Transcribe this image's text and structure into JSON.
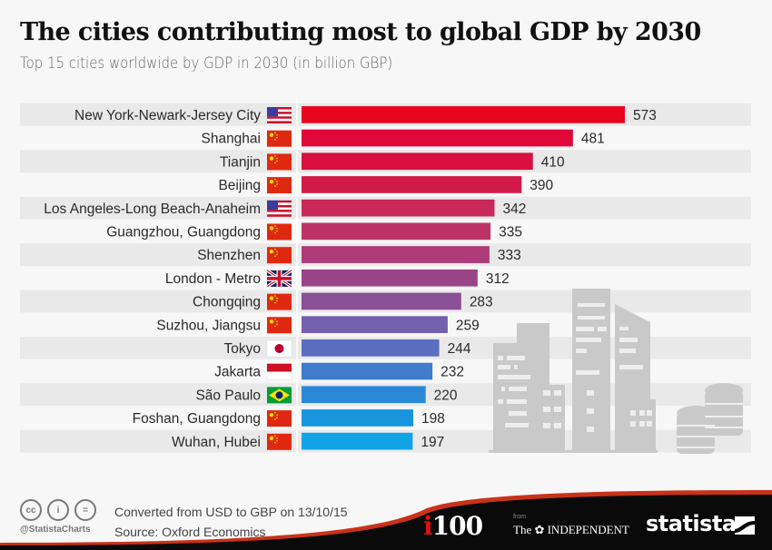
{
  "chart_data": {
    "type": "bar",
    "orientation": "horizontal",
    "title": "The cities contributing most to global GDP by 2030",
    "subtitle": "Top 15 cities worldwide by GDP in 2030 (in billion GBP)",
    "xlabel": "",
    "ylabel": "",
    "xlim": [
      0,
      573
    ],
    "grid": false,
    "legend": "none",
    "categories": [
      "New York-Newark-Jersey City",
      "Shanghai",
      "Tianjin",
      "Beijing",
      "Los Angeles-Long Beach-Anaheim",
      "Guangzhou, Guangdong",
      "Shenzhen",
      "London - Metro",
      "Chongqing",
      "Suzhou, Jiangsu",
      "Tokyo",
      "Jakarta",
      "São Paulo",
      "Foshan, Guangdong",
      "Wuhan, Hubei"
    ],
    "values": [
      573,
      481,
      410,
      390,
      342,
      335,
      333,
      312,
      283,
      259,
      244,
      232,
      220,
      198,
      197
    ],
    "flags": [
      "us-flag-icon",
      "cn-flag-icon",
      "cn-flag-icon",
      "cn-flag-icon",
      "us-flag-icon",
      "cn-flag-icon",
      "cn-flag-icon",
      "uk-flag-icon",
      "cn-flag-icon",
      "cn-flag-icon",
      "jp-flag-icon",
      "id-flag-icon",
      "br-flag-icon",
      "cn-flag-icon",
      "cn-flag-icon"
    ],
    "bar_colors": [
      "#e8061e",
      "#e0083a",
      "#d81140",
      "#d21a48",
      "#c8285a",
      "#bc3368",
      "#ae3a78",
      "#9a4488",
      "#8b4f98",
      "#7560ae",
      "#5a6ec0",
      "#3f7ccc",
      "#2a88d6",
      "#1895dc",
      "#12a3e6"
    ]
  },
  "footer": {
    "note": "Converted from USD to GBP on 13/10/15",
    "source": "Source: Oxford Economics",
    "handle": "@StatistaCharts",
    "cc_icons": [
      "cc-icon",
      "by-icon",
      "nd-icon"
    ],
    "cc_labels": [
      "cc",
      "i",
      "="
    ],
    "logo_i100_i": "i",
    "logo_i100_rest": "100",
    "logo_from": "from",
    "logo_independent": "The ✿ INDEPENDENT",
    "logo_statista": "statista"
  },
  "colors": {
    "stripe": "#e9e9e9",
    "background": "#f7f7f7",
    "footer_dark": "#0a0a0a",
    "footer_accent": "#c8321a"
  }
}
